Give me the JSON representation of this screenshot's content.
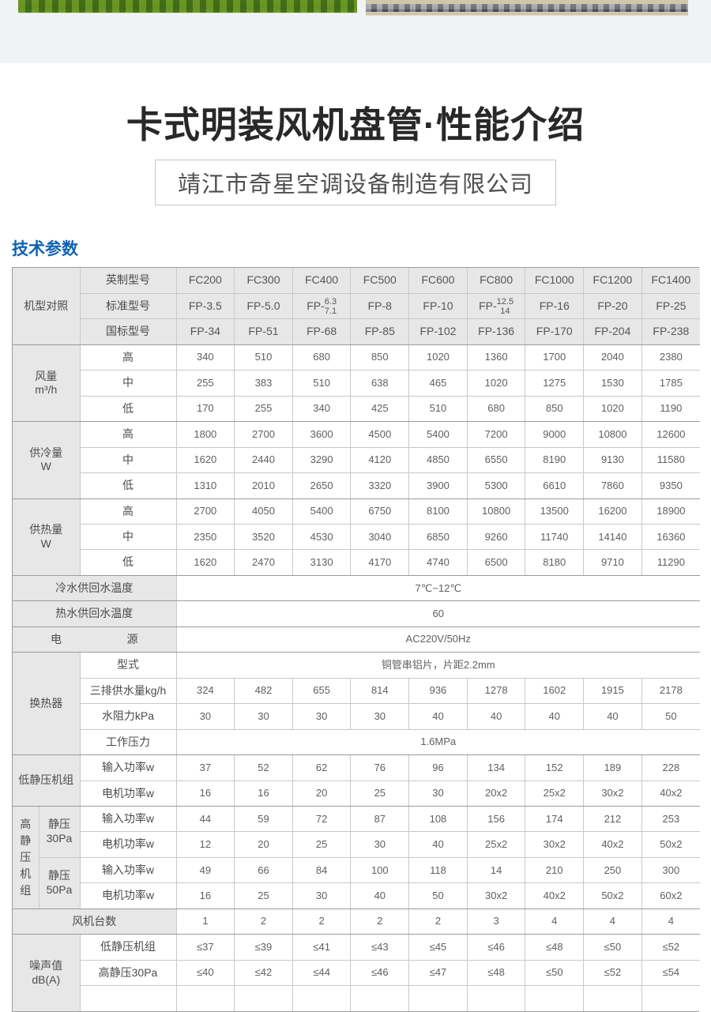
{
  "page": {
    "hero": {
      "left_image": "grass-field-photo",
      "right_image": "stone-pavement-photo"
    },
    "title": "卡式明装风机盘管·性能介绍",
    "company": "靖江市奇星空调设备制造有限公司",
    "section_heading": "技术参数"
  },
  "colors": {
    "heading_blue": "#1063b2",
    "table_header_bg": "#e7e7e7",
    "table_border_dark": "#9b9b9b",
    "table_border_light": "#c9c9c9"
  },
  "spec_table": {
    "model_compare": {
      "group": "机型对照",
      "rows": [
        {
          "label": "英制型号",
          "values": [
            "FC200",
            "FC300",
            "FC400",
            "FC500",
            "FC600",
            "FC800",
            "FC1000",
            "FC1200",
            "FC1400"
          ]
        },
        {
          "label": "标准型号",
          "values": [
            "FP-3.5",
            "FP-5.0",
            {
              "stack": true,
              "prefix": "FP-",
              "top": "6.3",
              "bottom": "7.1"
            },
            "FP-8",
            "FP-10",
            {
              "stack": true,
              "prefix": "FP-",
              "top": "12.5",
              "bottom": "14"
            },
            "FP-16",
            "FP-20",
            "FP-25"
          ]
        },
        {
          "label": "国标型号",
          "values": [
            "FP-34",
            "FP-51",
            "FP-68",
            "FP-85",
            "FP-102",
            "FP-136",
            "FP-170",
            "FP-204",
            "FP-238"
          ]
        }
      ]
    },
    "airflow": {
      "group": "风量\nm³/h",
      "rows": [
        {
          "label": "高",
          "values": [
            "340",
            "510",
            "680",
            "850",
            "1020",
            "1360",
            "1700",
            "2040",
            "2380"
          ]
        },
        {
          "label": "中",
          "values": [
            "255",
            "383",
            "510",
            "638",
            "465",
            "1020",
            "1275",
            "1530",
            "1785"
          ]
        },
        {
          "label": "低",
          "values": [
            "170",
            "255",
            "340",
            "425",
            "510",
            "680",
            "850",
            "1020",
            "1190"
          ]
        }
      ]
    },
    "cooling": {
      "group": "供冷量\nW",
      "rows": [
        {
          "label": "高",
          "values": [
            "1800",
            "2700",
            "3600",
            "4500",
            "5400",
            "7200",
            "9000",
            "10800",
            "12600"
          ]
        },
        {
          "label": "中",
          "values": [
            "1620",
            "2440",
            "3290",
            "4120",
            "4850",
            "6550",
            "8190",
            "9130",
            "11580"
          ]
        },
        {
          "label": "低",
          "values": [
            "1310",
            "2010",
            "2650",
            "3320",
            "3900",
            "5300",
            "6610",
            "7860",
            "9350"
          ]
        }
      ]
    },
    "heating": {
      "group": "供热量\nW",
      "rows": [
        {
          "label": "高",
          "values": [
            "2700",
            "4050",
            "5400",
            "6750",
            "8100",
            "10800",
            "13500",
            "16200",
            "18900"
          ]
        },
        {
          "label": "中",
          "values": [
            "2350",
            "3520",
            "4530",
            "3040",
            "6850",
            "9260",
            "11740",
            "14140",
            "16360"
          ]
        },
        {
          "label": "低",
          "values": [
            "1620",
            "2470",
            "3130",
            "4170",
            "4740",
            "6500",
            "8180",
            "9710",
            "11290"
          ]
        }
      ]
    },
    "single_rows": [
      {
        "label": "冷水供回水温度",
        "value": "7℃~12℃"
      },
      {
        "label": "热水供回水温度",
        "value": "60"
      },
      {
        "label": "电源",
        "justify": true,
        "value": "AC220V/50Hz"
      }
    ],
    "heat_exchanger": {
      "group": "换热器",
      "rows": [
        {
          "label": "型式",
          "value": "铜管串铝片，片距2.2mm"
        },
        {
          "label": "三排供水量kg/h",
          "values": [
            "324",
            "482",
            "655",
            "814",
            "936",
            "1278",
            "1602",
            "1915",
            "2178"
          ]
        },
        {
          "label": "水阻力kPa",
          "values": [
            "30",
            "30",
            "30",
            "30",
            "40",
            "40",
            "40",
            "40",
            "50"
          ]
        },
        {
          "label": "工作压力",
          "value": "1.6MPa"
        }
      ]
    },
    "low_static": {
      "group": "低静压机组",
      "rows": [
        {
          "label": "输入功率w",
          "values": [
            "37",
            "52",
            "62",
            "76",
            "96",
            "134",
            "152",
            "189",
            "228"
          ]
        },
        {
          "label": "电机功率w",
          "values": [
            "16",
            "16",
            "20",
            "25",
            "30",
            "20x2",
            "25x2",
            "30x2",
            "40x2"
          ]
        }
      ]
    },
    "high_static": {
      "group": "高\n静\n压\n机\n组",
      "subgroups": [
        {
          "label": "静压\n30Pa",
          "rows": [
            {
              "label": "输入功率w",
              "values": [
                "44",
                "59",
                "72",
                "87",
                "108",
                "156",
                "174",
                "212",
                "253"
              ]
            },
            {
              "label": "电机功率w",
              "values": [
                "12",
                "20",
                "25",
                "30",
                "40",
                "25x2",
                "30x2",
                "40x2",
                "50x2"
              ]
            }
          ]
        },
        {
          "label": "静压\n50Pa",
          "rows": [
            {
              "label": "输入功率w",
              "values": [
                "49",
                "66",
                "84",
                "100",
                "118",
                "14",
                "210",
                "250",
                "300"
              ]
            },
            {
              "label": "电机功率w",
              "values": [
                "16",
                "25",
                "30",
                "40",
                "50",
                "30x2",
                "40x2",
                "50x2",
                "60x2"
              ]
            }
          ]
        }
      ]
    },
    "fan_count": {
      "label": "风机台数",
      "values": [
        "1",
        "2",
        "2",
        "2",
        "2",
        "3",
        "4",
        "4",
        "4"
      ]
    },
    "noise": {
      "group": "噪声值\ndB(A)",
      "rows": [
        {
          "label": "低静压机组",
          "values": [
            "≤37",
            "≤39",
            "≤41",
            "≤43",
            "≤45",
            "≤46",
            "≤48",
            "≤50",
            "≤52"
          ]
        },
        {
          "label": "高静压30Pa",
          "values": [
            "≤40",
            "≤42",
            "≤44",
            "≤46",
            "≤47",
            "≤48",
            "≤50",
            "≤52",
            "≤54"
          ]
        }
      ],
      "clipped_row": true
    }
  }
}
